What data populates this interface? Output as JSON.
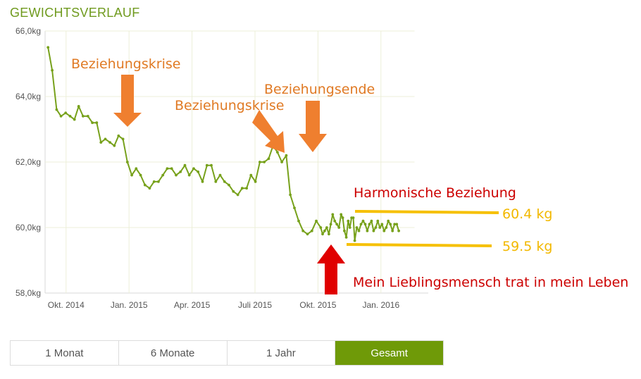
{
  "header": {
    "title": "GEWICHTSVERLAUF"
  },
  "colors": {
    "line": "#77a11b",
    "grid": "#ecefd8",
    "arrow_orange": "#ef7f2f",
    "label_orange": "#e07a24",
    "arrow_red": "#e00000",
    "label_red": "#cc0000",
    "band": "#f6c000",
    "tab_active": "#6f9a08"
  },
  "chart_data": {
    "type": "line",
    "title": "GEWICHTSVERLAUF",
    "ylim": [
      58,
      66
    ],
    "yticks": [
      66,
      64,
      62,
      60,
      58
    ],
    "ytick_labels": [
      "66,0kg",
      "64,0kg",
      "62,0kg",
      "60,0kg",
      "58,0kg"
    ],
    "xtick_labels": [
      "Okt. 2014",
      "Jan. 2015",
      "Apr. 2015",
      "Juli 2015",
      "Okt. 2015",
      "Jan. 2016"
    ],
    "xlim": [
      0,
      17.6
    ],
    "xticks": [
      1,
      4,
      7,
      10,
      13,
      16
    ],
    "grid": true,
    "series": [
      {
        "points": [
          [
            0.14,
            65.5
          ],
          [
            0.34,
            64.8
          ],
          [
            0.55,
            63.6
          ],
          [
            0.76,
            63.4
          ],
          [
            0.98,
            63.5
          ],
          [
            1.19,
            63.4
          ],
          [
            1.4,
            63.3
          ],
          [
            1.6,
            63.7
          ],
          [
            1.81,
            63.4
          ],
          [
            2.04,
            63.4
          ],
          [
            2.25,
            63.2
          ],
          [
            2.46,
            63.2
          ],
          [
            2.66,
            62.6
          ],
          [
            2.87,
            62.7
          ],
          [
            3.09,
            62.6
          ],
          [
            3.3,
            62.5
          ],
          [
            3.5,
            62.8
          ],
          [
            3.71,
            62.7
          ],
          [
            3.92,
            62.0
          ],
          [
            4.13,
            61.6
          ],
          [
            4.34,
            61.8
          ],
          [
            4.55,
            61.6
          ],
          [
            4.76,
            61.3
          ],
          [
            4.98,
            61.2
          ],
          [
            5.19,
            61.4
          ],
          [
            5.4,
            61.4
          ],
          [
            5.61,
            61.6
          ],
          [
            5.82,
            61.8
          ],
          [
            6.03,
            61.8
          ],
          [
            6.24,
            61.6
          ],
          [
            6.45,
            61.7
          ],
          [
            6.66,
            61.9
          ],
          [
            6.87,
            61.6
          ],
          [
            7.08,
            61.8
          ],
          [
            7.29,
            61.7
          ],
          [
            7.5,
            61.4
          ],
          [
            7.71,
            61.9
          ],
          [
            7.92,
            61.9
          ],
          [
            8.13,
            61.4
          ],
          [
            8.34,
            61.6
          ],
          [
            8.55,
            61.4
          ],
          [
            8.76,
            61.3
          ],
          [
            8.97,
            61.1
          ],
          [
            9.18,
            61.0
          ],
          [
            9.39,
            61.2
          ],
          [
            9.6,
            61.2
          ],
          [
            9.81,
            61.6
          ],
          [
            10.02,
            61.4
          ],
          [
            10.23,
            62.0
          ],
          [
            10.44,
            62.0
          ],
          [
            10.65,
            62.1
          ],
          [
            10.86,
            62.5
          ],
          [
            11.07,
            62.3
          ],
          [
            11.28,
            62.0
          ],
          [
            11.49,
            62.2
          ],
          [
            11.68,
            61.0
          ],
          [
            11.88,
            60.6
          ],
          [
            12.08,
            60.2
          ],
          [
            12.29,
            59.9
          ],
          [
            12.5,
            59.8
          ],
          [
            12.71,
            59.9
          ],
          [
            12.92,
            60.2
          ],
          [
            13.13,
            60.0
          ],
          [
            13.22,
            59.8
          ],
          [
            13.32,
            59.9
          ],
          [
            13.42,
            60.0
          ],
          [
            13.52,
            59.8
          ],
          [
            13.61,
            60.1
          ],
          [
            13.7,
            60.4
          ],
          [
            13.8,
            60.2
          ],
          [
            13.9,
            60.1
          ],
          [
            14.0,
            60.0
          ],
          [
            14.1,
            60.4
          ],
          [
            14.18,
            60.3
          ],
          [
            14.26,
            59.9
          ],
          [
            14.35,
            59.7
          ],
          [
            14.44,
            60.2
          ],
          [
            14.52,
            60.0
          ],
          [
            14.6,
            60.3
          ],
          [
            14.68,
            60.3
          ],
          [
            14.75,
            59.6
          ],
          [
            14.85,
            60.0
          ],
          [
            14.95,
            59.9
          ],
          [
            15.05,
            60.1
          ],
          [
            15.15,
            60.2
          ],
          [
            15.25,
            60.1
          ],
          [
            15.35,
            59.9
          ],
          [
            15.45,
            60.1
          ],
          [
            15.55,
            60.2
          ],
          [
            15.65,
            59.9
          ],
          [
            15.75,
            60.0
          ],
          [
            15.85,
            60.2
          ],
          [
            15.95,
            60.0
          ],
          [
            16.05,
            60.1
          ],
          [
            16.15,
            59.9
          ],
          [
            16.25,
            60.0
          ],
          [
            16.35,
            60.2
          ],
          [
            16.45,
            60.1
          ],
          [
            16.55,
            59.9
          ],
          [
            16.65,
            60.1
          ],
          [
            16.75,
            60.1
          ],
          [
            16.85,
            59.9
          ]
        ]
      }
    ],
    "annotations": {
      "label_krise1": "Beziehungskrise",
      "label_krise2": "Beziehungskrise",
      "label_ende": "Beziehungsende",
      "label_harmonie": "Harmonische Beziehung",
      "label_upper": "60.4 kg",
      "label_lower": "59.5 kg",
      "label_liebling": "Mein Lieblingsmensch trat in mein Leben"
    }
  },
  "tabs": [
    {
      "label": "1 Monat",
      "active": false
    },
    {
      "label": "6 Monate",
      "active": false
    },
    {
      "label": "1 Jahr",
      "active": false
    },
    {
      "label": "Gesamt",
      "active": true
    }
  ]
}
